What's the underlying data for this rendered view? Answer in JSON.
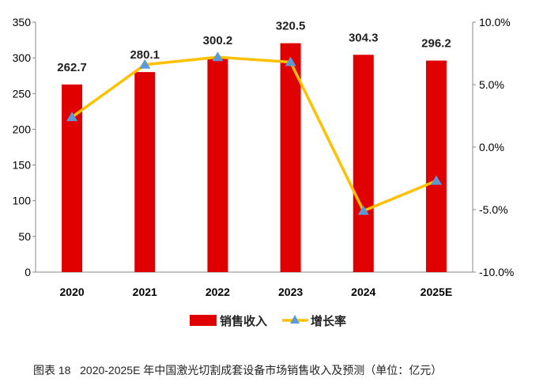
{
  "chart_data": {
    "type": "bar+line",
    "categories": [
      "2020",
      "2021",
      "2022",
      "2023",
      "2024",
      "2025E"
    ],
    "series": [
      {
        "name": "销售收入",
        "type": "bar",
        "axis": "left",
        "color": "#e00000",
        "values": [
          262.7,
          280.1,
          300.2,
          320.5,
          304.3,
          296.2
        ],
        "data_labels": [
          "262.7",
          "280.1",
          "300.2",
          "320.5",
          "304.3",
          "296.2"
        ]
      },
      {
        "name": "增长率",
        "type": "line",
        "axis": "right",
        "color": "#ffc000",
        "marker_color": "#5b9bd5",
        "marker": "triangle",
        "values": [
          2.4,
          6.6,
          7.2,
          6.8,
          -5.1,
          -2.7
        ]
      }
    ],
    "left_axis": {
      "range": [
        0,
        350
      ],
      "ticks": [
        "0",
        "50",
        "100",
        "150",
        "200",
        "250",
        "300",
        "350"
      ]
    },
    "right_axis": {
      "range": [
        -10,
        10
      ],
      "ticks": [
        "-10.0%",
        "-5.0%",
        "0.0%",
        "5.0%",
        "10.0%"
      ]
    },
    "grid": false,
    "legend": "bottom"
  },
  "caption": "图表 18   2020-2025E 年中国激光切割成套设备市场销售收入及预测（单位：亿元）"
}
